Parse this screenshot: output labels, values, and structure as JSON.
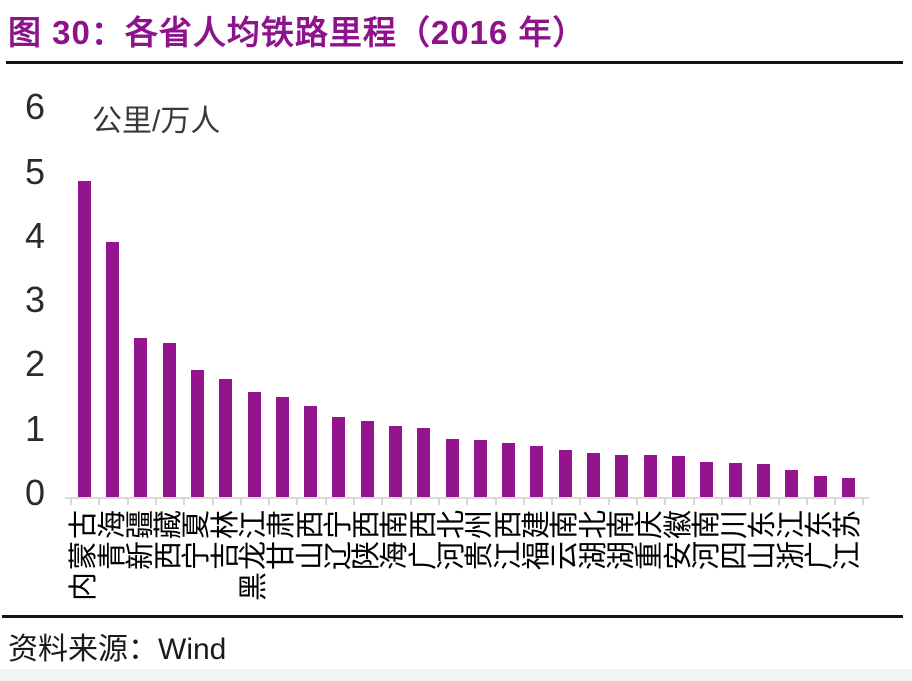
{
  "figure": {
    "title": "图 30：各省人均铁路里程（2016 年）",
    "source_label": "资料来源：",
    "source_value": "Wind"
  },
  "colors": {
    "title": "#8e128c",
    "bar": "#93148c",
    "axis": "#d9d9d9",
    "rule": "#141414",
    "footer_strip": "#f3f3f3"
  },
  "chart_data": {
    "type": "bar",
    "title": "各省人均铁路里程（2016 年）",
    "ylabel": "公里/万人",
    "unit_label": "公里/万人",
    "xlabel": "",
    "categories": [
      "内蒙古",
      "青海",
      "新疆",
      "西藏",
      "宁夏",
      "吉林",
      "黑龙江",
      "甘肃",
      "山西",
      "辽宁",
      "陕西",
      "海南",
      "广西",
      "河北",
      "贵州",
      "江西",
      "福建",
      "云南",
      "湖北",
      "湖南",
      "重庆",
      "安徽",
      "河南",
      "四川",
      "山东",
      "浙江",
      "广东",
      "江苏"
    ],
    "values": [
      4.92,
      3.96,
      2.47,
      2.39,
      1.97,
      1.84,
      1.63,
      1.55,
      1.41,
      1.25,
      1.19,
      1.1,
      1.07,
      0.91,
      0.89,
      0.84,
      0.79,
      0.73,
      0.68,
      0.66,
      0.65,
      0.64,
      0.55,
      0.53,
      0.51,
      0.42,
      0.33,
      0.3
    ],
    "ylim": [
      0,
      6
    ],
    "yticks": [
      0,
      1,
      2,
      3,
      4,
      5,
      6
    ],
    "grid": false,
    "legend": "none",
    "x_label_rotation": -90
  }
}
